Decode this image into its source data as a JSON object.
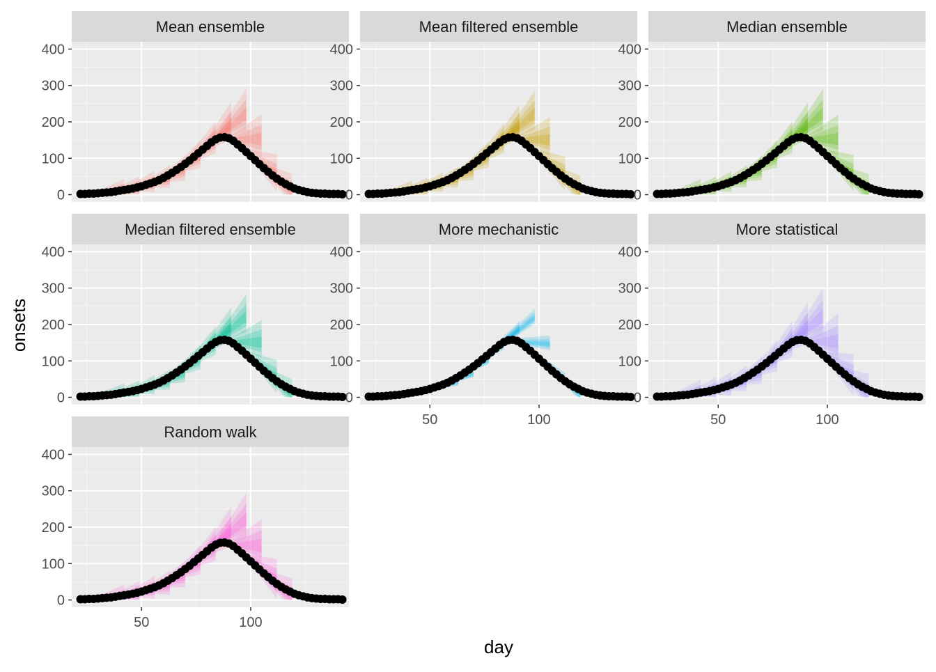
{
  "chart_data": {
    "type": "line",
    "xlabel": "day",
    "ylabel": "onsets",
    "xlim": [
      18,
      145
    ],
    "ylim": [
      -20,
      420
    ],
    "x_ticks": [
      50,
      100
    ],
    "y_ticks": [
      0,
      100,
      200,
      300,
      400
    ],
    "grid": true,
    "legend": "none",
    "forecast_origins": [
      28,
      35,
      42,
      49,
      56,
      63,
      70,
      77,
      84,
      91,
      98,
      105
    ],
    "observed": {
      "x": [
        22,
        24,
        26,
        28,
        30,
        32,
        34,
        36,
        38,
        40,
        42,
        44,
        46,
        48,
        50,
        52,
        54,
        56,
        58,
        60,
        62,
        64,
        66,
        68,
        70,
        72,
        74,
        76,
        78,
        80,
        82,
        84,
        86,
        88,
        90,
        92,
        94,
        96,
        98,
        100,
        102,
        104,
        106,
        108,
        110,
        112,
        114,
        116,
        118,
        120,
        122,
        124,
        126,
        128,
        130,
        132,
        134,
        136,
        138,
        140,
        142
      ],
      "y": [
        2,
        2,
        3,
        3,
        4,
        5,
        6,
        7,
        9,
        11,
        13,
        15,
        17,
        20,
        23,
        27,
        31,
        35,
        40,
        46,
        53,
        60,
        68,
        76,
        85,
        94,
        104,
        114,
        124,
        134,
        144,
        152,
        157,
        158,
        155,
        148,
        138,
        128,
        117,
        106,
        95,
        84,
        73,
        63,
        53,
        44,
        36,
        29,
        23,
        17,
        13,
        10,
        7,
        5,
        4,
        3,
        3,
        2,
        2,
        2,
        1
      ]
    },
    "panels": [
      {
        "name": "Mean ensemble",
        "color": "#f8766d",
        "spread": 1.5,
        "drift": 0.25
      },
      {
        "name": "Mean filtered ensemble",
        "color": "#c49a00",
        "spread": 1.35,
        "drift": 0.15
      },
      {
        "name": "Median ensemble",
        "color": "#53b400",
        "spread": 1.45,
        "drift": 0.3
      },
      {
        "name": "Median filtered ensemble",
        "color": "#00c094",
        "spread": 1.3,
        "drift": 0.2
      },
      {
        "name": "More mechanistic",
        "color": "#00b6eb",
        "spread": 0.35,
        "drift": 0.0
      },
      {
        "name": "More statistical",
        "color": "#a58aff",
        "spread": 1.7,
        "drift": 0.3
      },
      {
        "name": "Random walk",
        "color": "#fb61d7",
        "spread": 1.6,
        "drift": 0.0
      }
    ]
  }
}
